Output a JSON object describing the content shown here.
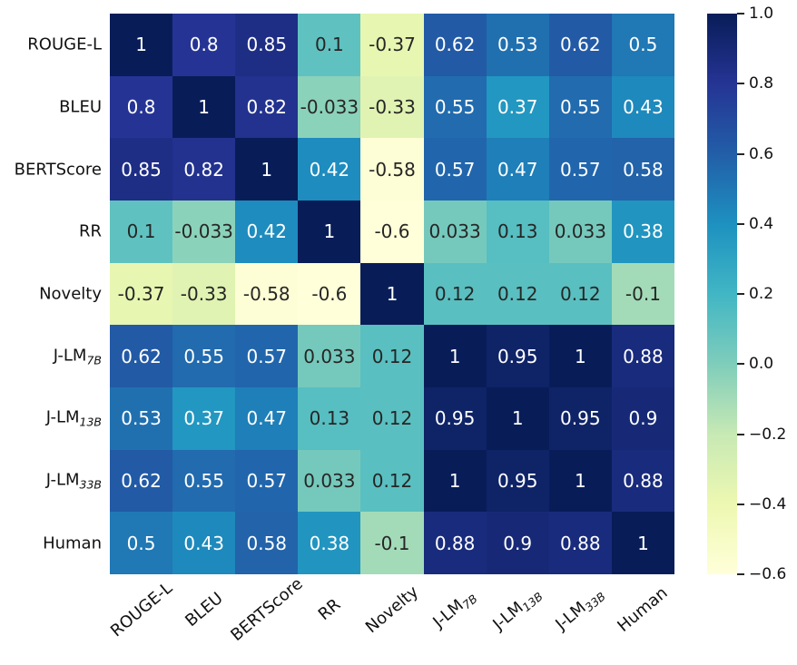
{
  "figure": {
    "background": "#ffffff",
    "axis_label_color": "#111111",
    "tick_color": "#262626"
  },
  "chart_data": {
    "type": "heatmap",
    "title": "",
    "xlabel": "",
    "ylabel": "",
    "labels": [
      {
        "text": "ROUGE-L",
        "sub": ""
      },
      {
        "text": "BLEU",
        "sub": ""
      },
      {
        "text": "BERTScore",
        "sub": ""
      },
      {
        "text": "RR",
        "sub": ""
      },
      {
        "text": "Novelty",
        "sub": ""
      },
      {
        "text": "J-LM",
        "sub": "7B"
      },
      {
        "text": "J-LM",
        "sub": "13B"
      },
      {
        "text": "J-LM",
        "sub": "33B"
      },
      {
        "text": "Human",
        "sub": ""
      }
    ],
    "values": [
      [
        1,
        0.8,
        0.85,
        0.1,
        -0.37,
        0.62,
        0.53,
        0.62,
        0.5
      ],
      [
        0.8,
        1,
        0.82,
        -0.033,
        -0.33,
        0.55,
        0.37,
        0.55,
        0.43
      ],
      [
        0.85,
        0.82,
        1,
        0.42,
        -0.58,
        0.57,
        0.47,
        0.57,
        0.58
      ],
      [
        0.1,
        -0.033,
        0.42,
        1,
        -0.6,
        0.033,
        0.13,
        0.033,
        0.38
      ],
      [
        -0.37,
        -0.33,
        -0.58,
        -0.6,
        1,
        0.12,
        0.12,
        0.12,
        -0.1
      ],
      [
        0.62,
        0.55,
        0.57,
        0.033,
        0.12,
        1,
        0.95,
        1,
        0.88
      ],
      [
        0.53,
        0.37,
        0.47,
        0.13,
        0.12,
        0.95,
        1,
        0.95,
        0.9
      ],
      [
        0.62,
        0.55,
        0.57,
        0.033,
        0.12,
        1,
        0.95,
        1,
        0.88
      ],
      [
        0.5,
        0.43,
        0.58,
        0.38,
        -0.1,
        0.88,
        0.9,
        0.88,
        1
      ]
    ],
    "annotations": [
      [
        "1",
        "0.8",
        "0.85",
        "0.1",
        "-0.37",
        "0.62",
        "0.53",
        "0.62",
        "0.5"
      ],
      [
        "0.8",
        "1",
        "0.82",
        "-0.033",
        "-0.33",
        "0.55",
        "0.37",
        "0.55",
        "0.43"
      ],
      [
        "0.85",
        "0.82",
        "1",
        "0.42",
        "-0.58",
        "0.57",
        "0.47",
        "0.57",
        "0.58"
      ],
      [
        "0.1",
        "-0.033",
        "0.42",
        "1",
        "-0.6",
        "0.033",
        "0.13",
        "0.033",
        "0.38"
      ],
      [
        "-0.37",
        "-0.33",
        "-0.58",
        "-0.6",
        "1",
        "0.12",
        "0.12",
        "0.12",
        "-0.1"
      ],
      [
        "0.62",
        "0.55",
        "0.57",
        "0.033",
        "0.12",
        "1",
        "0.95",
        "1",
        "0.88"
      ],
      [
        "0.53",
        "0.37",
        "0.47",
        "0.13",
        "0.12",
        "0.95",
        "1",
        "0.95",
        "0.9"
      ],
      [
        "0.62",
        "0.55",
        "0.57",
        "0.033",
        "0.12",
        "1",
        "0.95",
        "1",
        "0.88"
      ],
      [
        "0.5",
        "0.43",
        "0.58",
        "0.38",
        "-0.1",
        "0.88",
        "0.9",
        "0.88",
        "1"
      ]
    ],
    "vmin": -0.6,
    "vmax": 1.0,
    "grid": false,
    "colormap": {
      "name": "YlGnBu",
      "stops": [
        "#ffffd9",
        "#edf8b1",
        "#c7e9b4",
        "#7fcdbb",
        "#41b6c4",
        "#1d91c0",
        "#225ea8",
        "#253494",
        "#081d58"
      ]
    },
    "annotation_text_dark": "#262626",
    "annotation_text_light": "#ffffff",
    "colorbar": {
      "position": "right",
      "ticks": [
        {
          "label": "1.0",
          "value": 1.0
        },
        {
          "label": "0.8",
          "value": 0.8
        },
        {
          "label": "0.6",
          "value": 0.6
        },
        {
          "label": "0.4",
          "value": 0.4
        },
        {
          "label": "0.2",
          "value": 0.2
        },
        {
          "label": "0.0",
          "value": 0.0
        },
        {
          "label": "−0.2",
          "value": -0.2
        },
        {
          "label": "−0.4",
          "value": -0.4
        },
        {
          "label": "−0.6",
          "value": -0.6
        }
      ]
    }
  }
}
